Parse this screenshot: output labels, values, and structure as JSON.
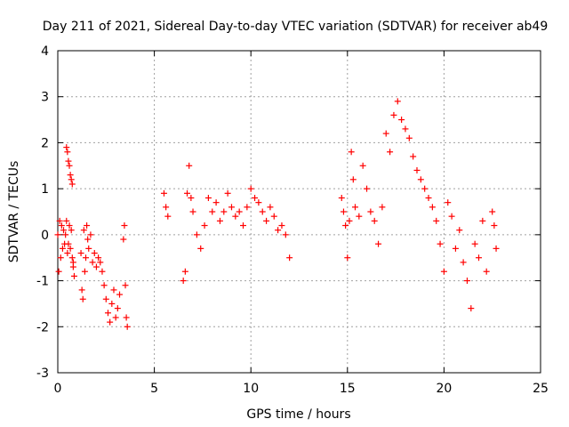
{
  "chart_data": {
    "type": "scatter",
    "title": "Day 211 of 2021, Sidereal Day-to-day VTEC variation (SDTVAR) for receiver ab49",
    "xlabel": "GPS time / hours",
    "ylabel": "SDTVAR / TECUs",
    "xlim": [
      0,
      25
    ],
    "ylim": [
      -3,
      4
    ],
    "xticks": [
      0,
      5,
      10,
      15,
      20,
      25
    ],
    "yticks": [
      -3,
      -2,
      -1,
      0,
      1,
      2,
      3,
      4
    ],
    "grid": true,
    "marker": "+",
    "series": [
      {
        "name": "SDTVAR",
        "color": "#ff0000",
        "x": [
          0.0,
          0.05,
          0.1,
          0.15,
          0.2,
          0.25,
          0.3,
          0.35,
          0.45,
          0.5,
          0.55,
          0.6,
          0.65,
          0.7,
          0.75,
          0.8,
          0.85,
          0.4,
          0.45,
          0.5,
          0.55,
          0.6,
          0.65,
          0.7,
          0.75,
          0.8,
          1.2,
          1.25,
          1.3,
          1.35,
          1.4,
          1.45,
          1.5,
          1.55,
          1.6,
          1.7,
          1.8,
          1.9,
          2.0,
          2.1,
          2.2,
          2.3,
          2.4,
          2.5,
          2.6,
          2.7,
          2.8,
          2.9,
          3.0,
          3.1,
          3.2,
          3.4,
          3.45,
          3.5,
          3.55,
          3.6,
          5.5,
          5.6,
          5.7,
          6.5,
          6.6,
          6.7,
          6.8,
          6.9,
          7.0,
          7.2,
          7.4,
          7.6,
          7.8,
          8.0,
          8.2,
          8.4,
          8.6,
          8.8,
          9.0,
          9.2,
          9.4,
          9.6,
          9.8,
          10.0,
          10.2,
          10.4,
          10.6,
          10.8,
          11.0,
          11.2,
          11.4,
          11.6,
          11.8,
          12.0,
          14.7,
          14.8,
          14.9,
          15.0,
          15.1,
          15.2,
          15.3,
          15.4,
          15.6,
          15.8,
          16.0,
          16.2,
          16.4,
          16.6,
          16.8,
          17.0,
          17.2,
          17.4,
          17.6,
          17.8,
          18.0,
          18.2,
          18.4,
          18.6,
          18.8,
          19.0,
          19.2,
          19.4,
          19.6,
          19.8,
          20.0,
          20.2,
          20.4,
          20.6,
          20.8,
          21.0,
          21.2,
          21.4,
          21.6,
          21.8,
          22.0,
          22.2,
          22.5,
          22.6,
          22.7
        ],
        "y": [
          0.0,
          -0.8,
          0.3,
          -0.5,
          0.2,
          -0.3,
          0.1,
          -0.2,
          1.9,
          1.8,
          1.6,
          1.5,
          1.3,
          1.2,
          1.1,
          -0.6,
          -0.9,
          0.0,
          0.3,
          -0.4,
          -0.2,
          0.2,
          -0.3,
          0.1,
          -0.5,
          -0.7,
          -0.4,
          -1.2,
          -1.4,
          0.1,
          -0.8,
          -0.5,
          0.2,
          -0.1,
          -0.3,
          0.0,
          -0.6,
          -0.4,
          -0.7,
          -0.5,
          -0.6,
          -0.8,
          -1.1,
          -1.4,
          -1.7,
          -1.9,
          -1.5,
          -1.2,
          -1.8,
          -1.6,
          -1.3,
          -0.1,
          0.2,
          -1.1,
          -1.8,
          -2.0,
          0.9,
          0.6,
          0.4,
          -1.0,
          -0.8,
          0.9,
          1.5,
          0.8,
          0.5,
          0.0,
          -0.3,
          0.2,
          0.8,
          0.5,
          0.7,
          0.3,
          0.5,
          0.9,
          0.6,
          0.4,
          0.5,
          0.2,
          0.6,
          1.0,
          0.8,
          0.7,
          0.5,
          0.3,
          0.6,
          0.4,
          0.1,
          0.2,
          0.0,
          -0.5,
          0.8,
          0.5,
          0.2,
          -0.5,
          0.3,
          1.8,
          1.2,
          0.6,
          0.4,
          1.5,
          1.0,
          0.5,
          0.3,
          -0.2,
          0.6,
          2.2,
          1.8,
          2.6,
          2.9,
          2.5,
          2.3,
          2.1,
          1.7,
          1.4,
          1.2,
          1.0,
          0.8,
          0.6,
          0.3,
          -0.2,
          -0.8,
          0.7,
          0.4,
          -0.3,
          0.1,
          -0.6,
          -1.0,
          -1.6,
          -0.2,
          -0.5,
          0.3,
          -0.8,
          0.5,
          0.2,
          -0.3
        ]
      }
    ]
  }
}
